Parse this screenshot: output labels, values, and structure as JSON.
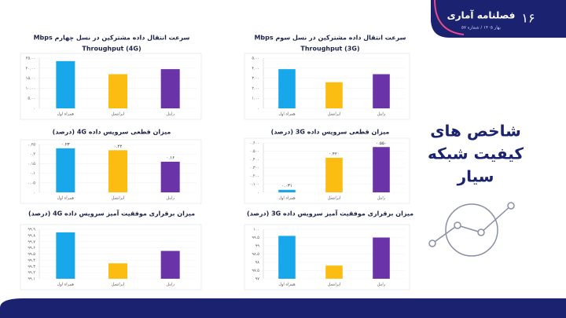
{
  "header": {
    "logo": "فصلنامه آماری",
    "issue": "۱۶",
    "date": "بهار ۱۴۰۵ / شماره ۵۷"
  },
  "headline": [
    "شاخص های",
    "کیفیت شبکه",
    "سیار"
  ],
  "chart_data": [
    {
      "type": "bar",
      "title": "سرعت انتقال داده مشترکین در نسل چهارم Mbps",
      "subtitle": "Throughput (4G)",
      "categories": [
        "همراه اول",
        "ایرانسل",
        "رایتل"
      ],
      "values": [
        23.5,
        17,
        19.5
      ],
      "colors": [
        "#19a7ec",
        "#fbbd12",
        "#6b33a8"
      ],
      "ylim": [
        0,
        25
      ],
      "yticks": [
        {
          "value": 0,
          "label": "۰"
        },
        {
          "value": 5,
          "label": "۵.۰۰"
        },
        {
          "value": 10,
          "label": "۱۰.۰۰"
        },
        {
          "value": 15,
          "label": "۱۵.۰۰"
        },
        {
          "value": 20,
          "label": "۲۰.۰۰"
        },
        {
          "value": 25,
          "label": "۲۵.۰۰"
        }
      ],
      "grid": true
    },
    {
      "type": "bar",
      "title": "سرعت انتقال داده مشترکین در نسل سوم Mbps",
      "subtitle": "Throughput (3G)",
      "categories": [
        "همراه اول",
        "ایرانسل",
        "رایتل"
      ],
      "values": [
        3.9,
        2.6,
        3.4
      ],
      "colors": [
        "#19a7ec",
        "#fbbd12",
        "#6b33a8"
      ],
      "ylim": [
        0,
        5
      ],
      "yticks": [
        {
          "value": 0,
          "label": "۰"
        },
        {
          "value": 1,
          "label": "۱.۰۰"
        },
        {
          "value": 2,
          "label": "۲.۰۰"
        },
        {
          "value": 3,
          "label": "۳.۰۰"
        },
        {
          "value": 4,
          "label": "۴.۰۰"
        },
        {
          "value": 5,
          "label": "۵.۰۰"
        }
      ],
      "grid": true
    },
    {
      "type": "bar",
      "title": "میزان قطعی سرویس داده 4G (درصد)",
      "categories": [
        "همراه اول",
        "ایرانسل",
        "رایتل"
      ],
      "values": [
        0.23,
        0.22,
        0.16
      ],
      "value_labels": [
        "۰.۲۳",
        "۰.۲۲",
        "۰.۱۶"
      ],
      "colors": [
        "#19a7ec",
        "#fbbd12",
        "#6b33a8"
      ],
      "ylim": [
        0,
        0.25
      ],
      "yticks": [
        {
          "value": 0,
          "label": "۰"
        },
        {
          "value": 0.05,
          "label": "۰.۰۵"
        },
        {
          "value": 0.1,
          "label": "۰.۱"
        },
        {
          "value": 0.15,
          "label": "۰.۱۵"
        },
        {
          "value": 0.2,
          "label": "۰.۲"
        },
        {
          "value": 0.25,
          "label": "۰.۲۵"
        }
      ],
      "grid": true
    },
    {
      "type": "bar",
      "title": "میزان قطعی سرویس داده 3G (درصد)",
      "categories": [
        "همراه اول",
        "ایرانسل",
        "رایتل"
      ],
      "values": [
        0.031,
        0.42,
        0.55
      ],
      "value_labels": [
        "۰.۰۳۱",
        "۰.۴۲۰",
        "۰.۵۵۰"
      ],
      "colors": [
        "#19a7ec",
        "#fbbd12",
        "#6b33a8"
      ],
      "ylim": [
        0,
        0.6
      ],
      "yticks": [
        {
          "value": 0,
          "label": "۰"
        },
        {
          "value": 0.1,
          "label": "۰.۱۰۰"
        },
        {
          "value": 0.2,
          "label": "۰.۲۰۰"
        },
        {
          "value": 0.3,
          "label": "۰.۳۰۰"
        },
        {
          "value": 0.4,
          "label": "۰.۴۰۰"
        },
        {
          "value": 0.5,
          "label": "۰.۵۰۰"
        },
        {
          "value": 0.6,
          "label": "۰.۶۰۰"
        }
      ],
      "grid": true
    },
    {
      "type": "bar",
      "title": "میزان برقراری موفقیت آمیز سرویس داده 4G (درصد)",
      "categories": [
        "همراه اول",
        "ایرانسل",
        "رایتل"
      ],
      "values": [
        99.85,
        99.35,
        99.55
      ],
      "colors": [
        "#19a7ec",
        "#fbbd12",
        "#6b33a8"
      ],
      "ylim": [
        99.1,
        99.9
      ],
      "yticks": [
        {
          "value": 99.1,
          "label": "۹۹.۱"
        },
        {
          "value": 99.2,
          "label": "۹۹.۲"
        },
        {
          "value": 99.3,
          "label": "۹۹.۳"
        },
        {
          "value": 99.4,
          "label": "۹۹.۴"
        },
        {
          "value": 99.5,
          "label": "۹۹.۵"
        },
        {
          "value": 99.6,
          "label": "۹۹.۶"
        },
        {
          "value": 99.7,
          "label": "۹۹.۷"
        },
        {
          "value": 99.8,
          "label": "۹۹.۸"
        },
        {
          "value": 99.9,
          "label": "۹۹.۹"
        }
      ],
      "grid": true
    },
    {
      "type": "bar",
      "title": "میزان برقراری موفقیت آمیز سرویس داده 3G (درصد)",
      "categories": [
        "همراه اول",
        "ایرانسل",
        "رایتل"
      ],
      "values": [
        99.6,
        97.8,
        99.5
      ],
      "colors": [
        "#19a7ec",
        "#fbbd12",
        "#6b33a8"
      ],
      "ylim": [
        97,
        100
      ],
      "yticks": [
        {
          "value": 97,
          "label": "۹۷"
        },
        {
          "value": 97.5,
          "label": "۹۷.۵"
        },
        {
          "value": 98,
          "label": "۹۸"
        },
        {
          "value": 98.5,
          "label": "۹۸.۵"
        },
        {
          "value": 99,
          "label": "۹۹"
        },
        {
          "value": 99.5,
          "label": "۹۹.۵"
        },
        {
          "value": 100,
          "label": "۱۰۰"
        }
      ],
      "grid": true
    }
  ]
}
